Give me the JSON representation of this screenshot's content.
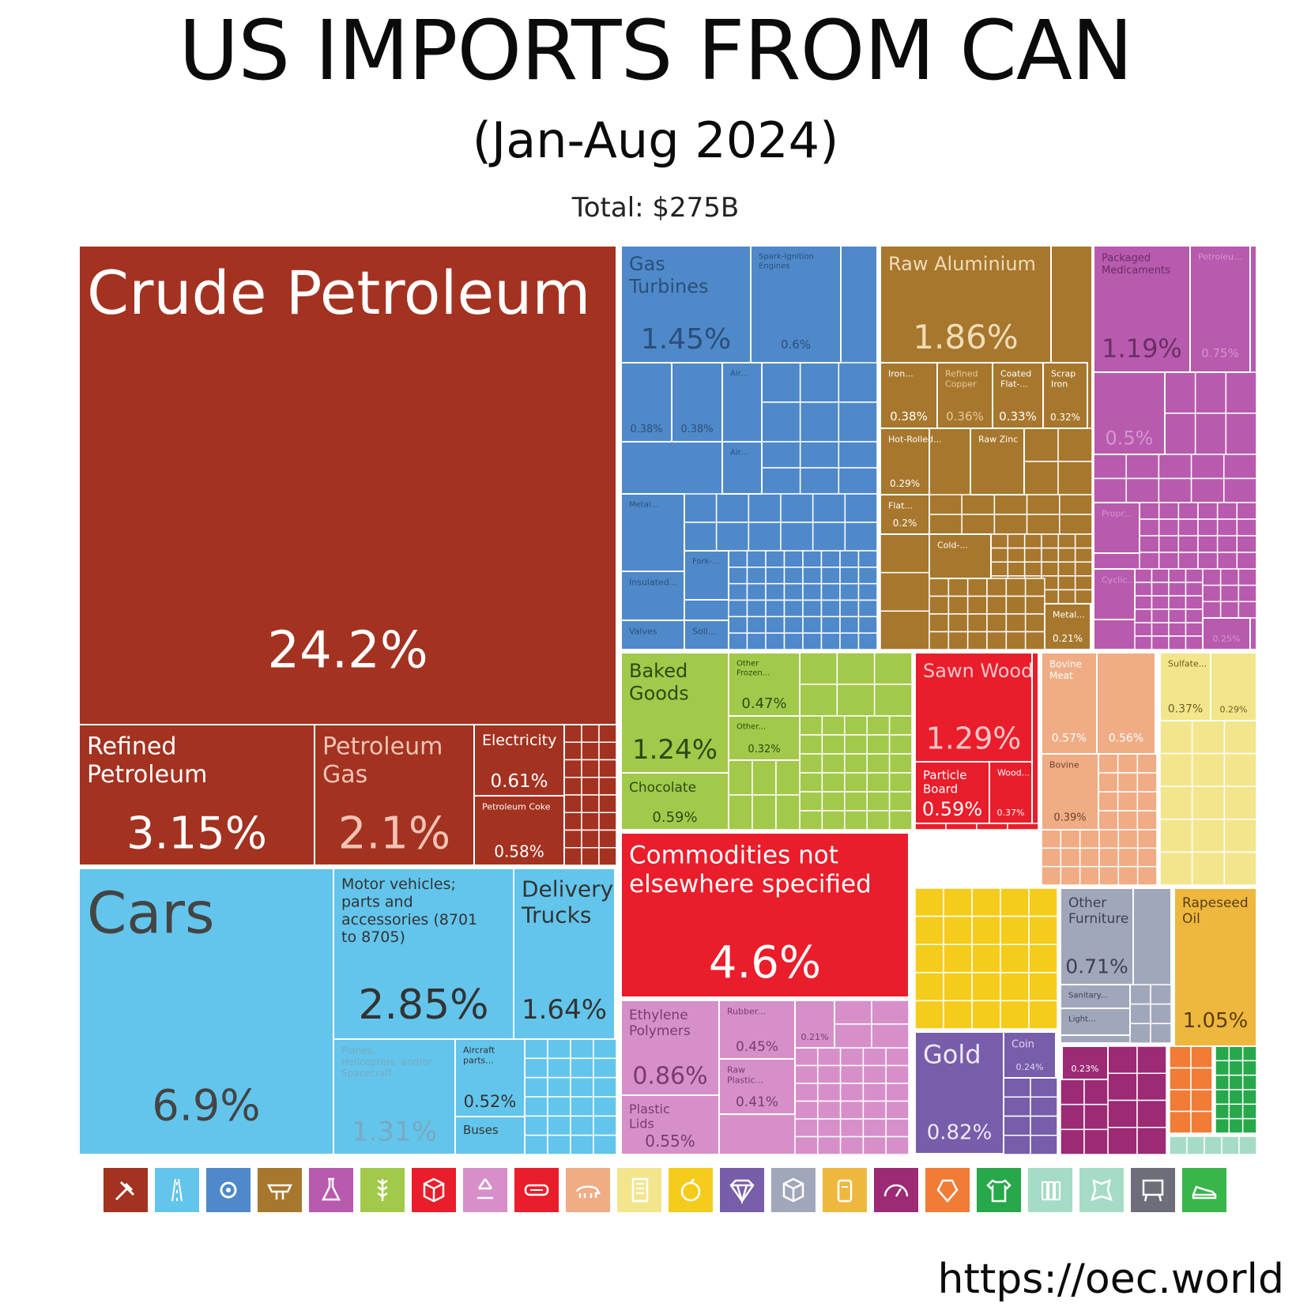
{
  "header": {
    "title": "US IMPORTS FROM CAN",
    "subtitle": "(Jan-Aug 2024)",
    "total": "Total: $275B"
  },
  "footer": {
    "source": "https://oec.world"
  },
  "colors": {
    "minerals": "#a33220",
    "transportation": "#63c5ec",
    "machines": "#4f89c9",
    "metals": "#a7772d",
    "chemicals": "#b85aae",
    "vegetable": "#a2c94a",
    "foodstuffs": "#a2c94a",
    "other": "#ea1d2b",
    "wood": "#ea1d2b",
    "animal": "#f0ac84",
    "mineral_products": "#f3e58c",
    "plastics": "#d78fca",
    "vegetable_products": "#f5cc1b",
    "precious": "#775daa",
    "misc": "#a1a7ba",
    "fats": "#eeb83e"
  },
  "legend_icons": [
    {
      "name": "mineral-products-icon",
      "color": "#a33220"
    },
    {
      "name": "transportation-icon",
      "color": "#63c5ec"
    },
    {
      "name": "machines-icon",
      "color": "#4f89c9"
    },
    {
      "name": "metals-icon",
      "color": "#a7772d"
    },
    {
      "name": "chemical-products-icon",
      "color": "#b85aae"
    },
    {
      "name": "foodstuffs-icon",
      "color": "#a2c94a"
    },
    {
      "name": "instruments-icon",
      "color": "#ea1d2b"
    },
    {
      "name": "plastics-and-rubbers-icon",
      "color": "#d78fca"
    },
    {
      "name": "paper-goods-icon",
      "color": "#ea1d2b"
    },
    {
      "name": "animal-products-icon",
      "color": "#f0ac84"
    },
    {
      "name": "paper-scroll-icon",
      "color": "#f3e58c"
    },
    {
      "name": "vegetable-products-icon",
      "color": "#f5cc1b"
    },
    {
      "name": "precious-metals-icon",
      "color": "#775daa"
    },
    {
      "name": "miscellaneous-icon",
      "color": "#a1a7ba"
    },
    {
      "name": "animal-and-vegetable-bi-products-icon",
      "color": "#eeb83e"
    },
    {
      "name": "weapons-icon",
      "color": "#9c2a74"
    },
    {
      "name": "stone-and-glass-icon",
      "color": "#f07c36"
    },
    {
      "name": "textiles-icon",
      "color": "#27a84a"
    },
    {
      "name": "bottles-icon",
      "color": "#a6dcc5"
    },
    {
      "name": "animal-hides-icon",
      "color": "#a6dcc5"
    },
    {
      "name": "art-and-antiques-icon",
      "color": "#6e6e7a"
    },
    {
      "name": "footwear-icon",
      "color": "#39b54a"
    }
  ],
  "chart_data": {
    "type": "treemap",
    "title": "US IMPORTS FROM CAN",
    "subtitle": "(Jan-Aug 2024)",
    "total": "Total: $275B",
    "items": [
      {
        "label": "Crude Petroleum",
        "value": "24.2%",
        "color": "#a33220"
      },
      {
        "label": "Refined Petroleum",
        "value": "3.15%",
        "color": "#a33220"
      },
      {
        "label": "Petroleum Gas",
        "value": "2.1%",
        "color": "#a33220"
      },
      {
        "label": "Electricity",
        "value": "0.61%",
        "color": "#a33220"
      },
      {
        "label": "Petroleum Coke",
        "value": "0.58%",
        "color": "#a33220"
      },
      {
        "label": "Cars",
        "value": "6.9%",
        "color": "#63c5ec"
      },
      {
        "label": "Motor vehicles; parts and accessories (8701 to 8705)",
        "value": "2.85%",
        "color": "#63c5ec"
      },
      {
        "label": "Delivery Trucks",
        "value": "1.64%",
        "color": "#63c5ec"
      },
      {
        "label": "Planes, Helicopters, and/or Spacecraft",
        "value": "1.31%",
        "color": "#63c5ec"
      },
      {
        "label": "Aircraft parts...",
        "value": "0.52%",
        "color": "#63c5ec"
      },
      {
        "label": "Buses",
        "value": "",
        "color": "#63c5ec"
      },
      {
        "label": "Gas Turbines",
        "value": "1.45%",
        "color": "#4f89c9"
      },
      {
        "label": "Spark-Ignition Engines",
        "value": "0.6%",
        "color": "#4f89c9"
      },
      {
        "label": "",
        "value": "0.38%",
        "color": "#4f89c9"
      },
      {
        "label": "",
        "value": "0.38%",
        "color": "#4f89c9"
      },
      {
        "label": "Air...",
        "value": "",
        "color": "#4f89c9"
      },
      {
        "label": "Air...",
        "value": "",
        "color": "#4f89c9"
      },
      {
        "label": "Metal...",
        "value": "",
        "color": "#4f89c9"
      },
      {
        "label": "Fork-...",
        "value": "",
        "color": "#4f89c9"
      },
      {
        "label": "Insulated...",
        "value": "",
        "color": "#4f89c9"
      },
      {
        "label": "Valves",
        "value": "",
        "color": "#4f89c9"
      },
      {
        "label": "Soil...",
        "value": "",
        "color": "#4f89c9"
      },
      {
        "label": "Raw Aluminium",
        "value": "1.86%",
        "color": "#a7772d"
      },
      {
        "label": "Iron...",
        "value": "0.38%",
        "color": "#a7772d"
      },
      {
        "label": "Refined Copper",
        "value": "0.36%",
        "color": "#a7772d"
      },
      {
        "label": "Coated Flat-...",
        "value": "0.33%",
        "color": "#a7772d"
      },
      {
        "label": "Scrap Iron",
        "value": "0.32%",
        "color": "#a7772d"
      },
      {
        "label": "Hot-Rolled...",
        "value": "0.29%",
        "color": "#a7772d"
      },
      {
        "label": "Raw Zinc",
        "value": "",
        "color": "#a7772d"
      },
      {
        "label": "Flat...",
        "value": "0.2%",
        "color": "#a7772d"
      },
      {
        "label": "Cold-...",
        "value": "",
        "color": "#a7772d"
      },
      {
        "label": "Metal...",
        "value": "0.21%",
        "color": "#a7772d"
      },
      {
        "label": "Packaged Medicaments",
        "value": "1.19%",
        "color": "#b85aae"
      },
      {
        "label": "Petroleu...",
        "value": "0.75%",
        "color": "#b85aae"
      },
      {
        "label": "",
        "value": "0.5%",
        "color": "#b85aae"
      },
      {
        "label": "Propr...",
        "value": "",
        "color": "#b85aae"
      },
      {
        "label": "Cyclic...",
        "value": "",
        "color": "#b85aae"
      },
      {
        "label": "",
        "value": "0.25%",
        "color": "#b85aae"
      },
      {
        "label": "Baked Goods",
        "value": "1.24%",
        "color": "#a2c94a"
      },
      {
        "label": "Other Frozen...",
        "value": "0.47%",
        "color": "#a2c94a"
      },
      {
        "label": "Other...",
        "value": "0.32%",
        "color": "#a2c94a"
      },
      {
        "label": "Chocolate",
        "value": "0.59%",
        "color": "#a2c94a"
      },
      {
        "label": "Sawn Wood",
        "value": "1.29%",
        "color": "#ea1d2b"
      },
      {
        "label": "Particle Board",
        "value": "0.59%",
        "color": "#ea1d2b"
      },
      {
        "label": "Wood...",
        "value": "0.37%",
        "color": "#ea1d2b"
      },
      {
        "label": "Commodities not elsewhere specified",
        "value": "4.6%",
        "color": "#ea1d2b"
      },
      {
        "label": "Bovine Meat",
        "value": "0.57%",
        "color": "#f0ac84"
      },
      {
        "label": "",
        "value": "0.56%",
        "color": "#f0ac84"
      },
      {
        "label": "Bovine",
        "value": "0.39%",
        "color": "#f0ac84"
      },
      {
        "label": "Sulfate...",
        "value": "0.37%",
        "color": "#f3e58c"
      },
      {
        "label": "",
        "value": "0.29%",
        "color": "#f3e58c"
      },
      {
        "label": "Ethylene Polymers",
        "value": "0.86%",
        "color": "#d78fca"
      },
      {
        "label": "Rubber...",
        "value": "0.45%",
        "color": "#d78fca"
      },
      {
        "label": "",
        "value": "0.21%",
        "color": "#d78fca"
      },
      {
        "label": "Raw Plastic...",
        "value": "0.41%",
        "color": "#d78fca"
      },
      {
        "label": "Plastic Lids",
        "value": "0.55%",
        "color": "#d78fca"
      },
      {
        "label": "Other Furniture",
        "value": "0.71%",
        "color": "#a1a7ba"
      },
      {
        "label": "Sanitary...",
        "value": "",
        "color": "#a1a7ba"
      },
      {
        "label": "Light...",
        "value": "",
        "color": "#a1a7ba"
      },
      {
        "label": "Rapeseed Oil",
        "value": "1.05%",
        "color": "#eeb83e"
      },
      {
        "label": "Gold",
        "value": "0.82%",
        "color": "#775daa"
      },
      {
        "label": "Coin",
        "value": "0.24%",
        "color": "#775daa"
      },
      {
        "label": "",
        "value": "0.23%",
        "color": "#9c2a74"
      }
    ]
  }
}
